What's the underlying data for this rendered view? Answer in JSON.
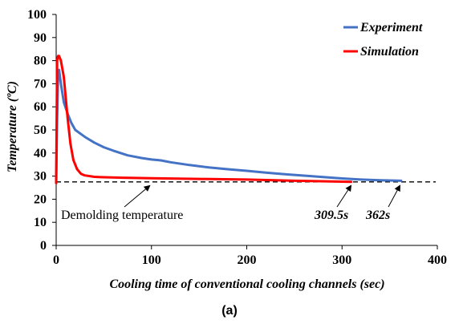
{
  "chart_data": {
    "type": "line",
    "xlabel": "Cooling time of conventional cooling channels (sec)",
    "ylabel": "Temperature (ºC)",
    "xlim": [
      0,
      400
    ],
    "ylim": [
      0,
      100
    ],
    "xticks": [
      0,
      100,
      200,
      300,
      400
    ],
    "yticks": [
      0,
      10,
      20,
      30,
      40,
      50,
      60,
      70,
      80,
      90,
      100
    ],
    "grid": false,
    "legend_position": "top-right",
    "series": [
      {
        "name": "Experiment",
        "color": "#4472c4",
        "x": [
          0,
          1,
          2,
          3,
          5,
          8,
          12,
          16,
          20,
          30,
          40,
          50,
          60,
          75,
          90,
          100,
          110,
          120,
          140,
          160,
          180,
          200,
          220,
          240,
          260,
          280,
          300,
          320,
          340,
          362
        ],
        "y": [
          27,
          55,
          74,
          76,
          70,
          62,
          57,
          53,
          50,
          47,
          44.5,
          42.5,
          41,
          39,
          37.8,
          37.2,
          36.8,
          36,
          34.8,
          33.8,
          33,
          32.3,
          31.5,
          30.8,
          30.2,
          29.6,
          29,
          28.5,
          28.2,
          28
        ]
      },
      {
        "name": "Simulation",
        "color": "#ff0000",
        "x": [
          0,
          1,
          2,
          3,
          5,
          8,
          10,
          12,
          15,
          18,
          22,
          26,
          30,
          40,
          50,
          70,
          100,
          150,
          200,
          250,
          300,
          309.5
        ],
        "y": [
          27,
          80,
          82,
          82,
          80,
          73,
          64,
          55,
          44,
          37,
          33,
          31,
          30.3,
          29.7,
          29.5,
          29.3,
          29.1,
          28.8,
          28.5,
          28,
          27.6,
          27.5
        ]
      }
    ],
    "reference_line": {
      "label": "Demolding temperature",
      "y": 27.5,
      "style": "dashed"
    },
    "annotations": [
      {
        "text": "309.5s",
        "x": 309.5,
        "y": 27.5
      },
      {
        "text": "362s",
        "x": 362,
        "y": 27.5
      }
    ]
  },
  "caption": "(a)"
}
